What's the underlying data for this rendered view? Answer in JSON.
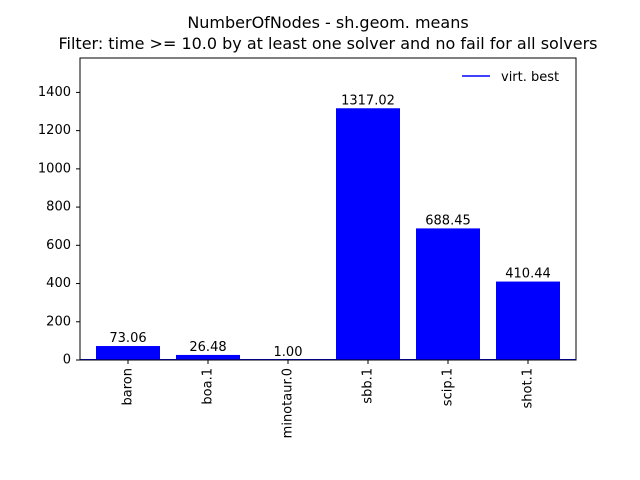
{
  "chart_data": {
    "type": "bar",
    "title": "NumberOfNodes - sh.geom. means",
    "subtitle": "Filter: time >= 10.0 by at least one solver and no fail for all solvers",
    "xlabel": "",
    "ylabel": "",
    "categories": [
      "baron",
      "boa.1",
      "minotaur.0",
      "sbb.1",
      "scip.1",
      "shot.1"
    ],
    "values": [
      73.06,
      26.48,
      1.0,
      1317.02,
      688.45,
      410.44
    ],
    "value_labels": [
      "73.06",
      "26.48",
      "1.00",
      "1317.02",
      "688.45",
      "410.44"
    ],
    "ylim": [
      0,
      1580
    ],
    "yticks": [
      0,
      200,
      400,
      600,
      800,
      1000,
      1200,
      1400
    ],
    "bar_color": "#0000ff",
    "reference_line": {
      "name": "virt. best",
      "value": 1.0,
      "color": "#0000ff"
    },
    "legend": {
      "placement": "top-right",
      "entries": [
        "virt. best"
      ]
    },
    "grid": false
  }
}
